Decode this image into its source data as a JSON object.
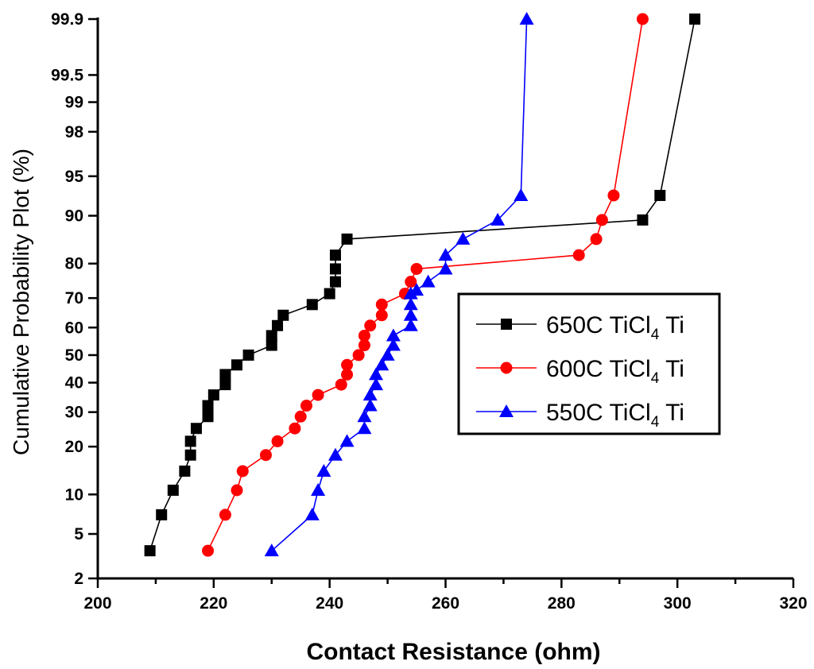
{
  "chart_data": {
    "type": "line",
    "title": "",
    "xlabel": "Contact Resistance (ohm)",
    "ylabel": "Cumulative Probability Plot (%)",
    "xlim": [
      200,
      320
    ],
    "x_ticks": [
      200,
      220,
      240,
      260,
      280,
      300,
      320
    ],
    "y_scale": "probability",
    "ylim": [
      2,
      99.9
    ],
    "y_ticks": [
      2,
      5,
      10,
      20,
      30,
      40,
      50,
      60,
      70,
      80,
      90,
      95,
      98,
      99,
      99.5,
      99.9
    ],
    "y_tick_labels": [
      "2",
      "5",
      "10",
      "20",
      "30",
      "40",
      "50",
      "60",
      "70",
      "80",
      "90",
      "95",
      "98",
      "99",
      "99.5",
      "99.9"
    ],
    "grid": false,
    "legend": "right",
    "series": [
      {
        "name_main": "650C TiCl",
        "name_sub": "4",
        "name_tail": " Ti",
        "color": "#000000",
        "marker": "square",
        "points": [
          [
            209,
            3.6
          ],
          [
            211,
            7.1
          ],
          [
            213,
            10.7
          ],
          [
            215,
            14.3
          ],
          [
            216,
            17.9
          ],
          [
            216,
            21.4
          ],
          [
            217,
            25
          ],
          [
            219,
            28.6
          ],
          [
            219,
            32.1
          ],
          [
            220,
            35.7
          ],
          [
            222,
            39.3
          ],
          [
            222,
            42.9
          ],
          [
            224,
            46.4
          ],
          [
            226,
            50
          ],
          [
            230,
            53.6
          ],
          [
            230,
            57.1
          ],
          [
            231,
            60.7
          ],
          [
            232,
            64.3
          ],
          [
            237,
            67.9
          ],
          [
            240,
            71.4
          ],
          [
            241,
            75
          ],
          [
            241,
            78.6
          ],
          [
            241,
            82.1
          ],
          [
            243,
            85.7
          ],
          [
            294,
            89.3
          ],
          [
            297,
            92.9
          ],
          [
            303,
            99.9
          ]
        ]
      },
      {
        "name_main": "600C TiCl",
        "name_sub": "4",
        "name_tail": " Ti",
        "color": "#ff0000",
        "marker": "circle",
        "points": [
          [
            219,
            3.6
          ],
          [
            222,
            7.1
          ],
          [
            224,
            10.7
          ],
          [
            225,
            14.3
          ],
          [
            229,
            17.9
          ],
          [
            231,
            21.4
          ],
          [
            234,
            25
          ],
          [
            235,
            28.6
          ],
          [
            236,
            32.1
          ],
          [
            238,
            35.7
          ],
          [
            242,
            39.3
          ],
          [
            243,
            42.9
          ],
          [
            243,
            46.4
          ],
          [
            245,
            50
          ],
          [
            246,
            53.6
          ],
          [
            246,
            57.1
          ],
          [
            247,
            60.7
          ],
          [
            249,
            64.3
          ],
          [
            249,
            67.9
          ],
          [
            253,
            71.4
          ],
          [
            254,
            75
          ],
          [
            255,
            78.6
          ],
          [
            283,
            82.1
          ],
          [
            286,
            85.7
          ],
          [
            287,
            89.3
          ],
          [
            289,
            92.9
          ],
          [
            294,
            99.9
          ]
        ]
      },
      {
        "name_main": "550C TiCl",
        "name_sub": "4",
        "name_tail": " Ti",
        "color": "#0000ff",
        "marker": "triangle",
        "points": [
          [
            230,
            3.6
          ],
          [
            237,
            7.1
          ],
          [
            238,
            10.7
          ],
          [
            239,
            14.3
          ],
          [
            241,
            17.9
          ],
          [
            243,
            21.4
          ],
          [
            246,
            25
          ],
          [
            246,
            28.6
          ],
          [
            247,
            32.1
          ],
          [
            247,
            35.7
          ],
          [
            248,
            39.3
          ],
          [
            248,
            42.9
          ],
          [
            249,
            46.4
          ],
          [
            250,
            50
          ],
          [
            251,
            53.6
          ],
          [
            251,
            57.1
          ],
          [
            254,
            60.7
          ],
          [
            254,
            64.3
          ],
          [
            254,
            67.9
          ],
          [
            254,
            71.4
          ],
          [
            255,
            72.5
          ],
          [
            257,
            75
          ],
          [
            260,
            78.6
          ],
          [
            260,
            82.1
          ],
          [
            263,
            85.7
          ],
          [
            269,
            89.3
          ],
          [
            273,
            92.9
          ],
          [
            274,
            99.9
          ]
        ]
      }
    ]
  }
}
